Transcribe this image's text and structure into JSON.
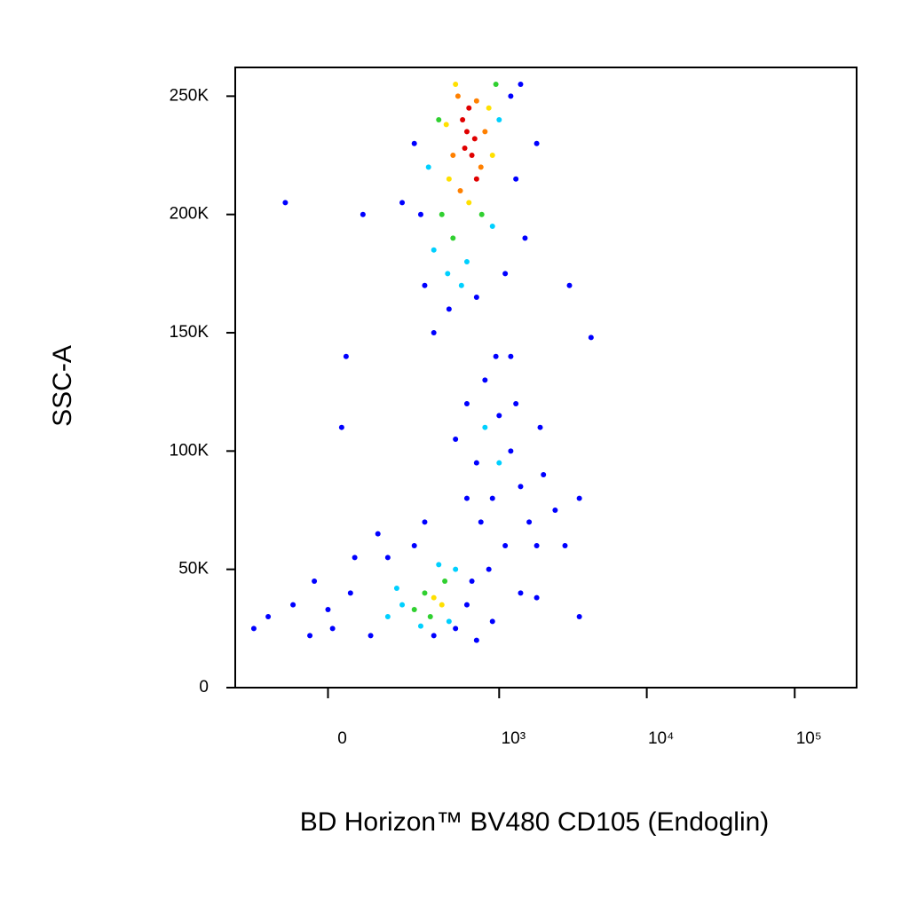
{
  "chart_data": {
    "type": "scatter",
    "x_label": "BD Horizon™ BV480 CD105 (Endoglin)",
    "y_label": "SSC-A",
    "xscale": "arcsinh",
    "xlim": [
      -280,
      262144
    ],
    "ylim": [
      0,
      262144
    ],
    "xticks": [
      0,
      {
        "value": 1000,
        "label": "10³"
      },
      {
        "value": 10000,
        "label": "10⁴"
      },
      {
        "value": 100000,
        "label": "10⁵"
      }
    ],
    "yticks": [
      0,
      {
        "value": 50000,
        "label": "50K"
      },
      {
        "value": 100000,
        "label": "100K"
      },
      {
        "value": 150000,
        "label": "150K"
      },
      {
        "value": 200000,
        "label": "200K"
      },
      {
        "value": 250000,
        "label": "250K"
      }
    ],
    "series": [
      {
        "color": "#0000ff",
        "x": [
          250,
          280,
          1200,
          1300,
          1500,
          300,
          700,
          450,
          1100,
          200,
          1800,
          1400,
          350,
          80,
          -100,
          40,
          30,
          3000,
          4200,
          600,
          800,
          1000,
          1200,
          700,
          900,
          1400,
          1600,
          500,
          1100,
          1300,
          750,
          2000,
          600,
          1800,
          950,
          1200,
          1900,
          2400,
          3500,
          2800,
          850,
          -150,
          -80,
          -30,
          10,
          50,
          100,
          60,
          150,
          250,
          350,
          500,
          600,
          650,
          300,
          700,
          900,
          -40,
          -200,
          1400,
          1800,
          3500,
          120,
          0
        ],
        "y": [
          230000,
          200000,
          250000,
          215000,
          190000,
          170000,
          165000,
          160000,
          175000,
          205000,
          230000,
          255000,
          150000,
          200000,
          205000,
          140000,
          110000,
          170000,
          148000,
          120000,
          130000,
          115000,
          100000,
          95000,
          80000,
          85000,
          70000,
          105000,
          60000,
          120000,
          70000,
          90000,
          80000,
          60000,
          140000,
          140000,
          110000,
          75000,
          80000,
          60000,
          50000,
          30000,
          35000,
          45000,
          25000,
          40000,
          22000,
          55000,
          55000,
          60000,
          22000,
          25000,
          35000,
          45000,
          70000,
          20000,
          28000,
          22000,
          25000,
          40000,
          38000,
          30000,
          65000,
          33000
        ]
      },
      {
        "color": "#00d0ff",
        "x": [
          350,
          600,
          900,
          320,
          1000,
          440,
          550,
          200,
          150,
          500,
          280,
          450,
          380,
          180,
          800,
          1000
        ],
        "y": [
          185000,
          180000,
          195000,
          220000,
          240000,
          175000,
          170000,
          35000,
          30000,
          50000,
          26000,
          28000,
          52000,
          42000,
          110000,
          95000
        ]
      },
      {
        "color": "#30d030",
        "x": [
          400,
          760,
          380,
          950,
          480,
          300,
          250,
          420,
          330
        ],
        "y": [
          200000,
          200000,
          240000,
          255000,
          190000,
          40000,
          33000,
          45000,
          30000
        ]
      },
      {
        "color": "#ffe000",
        "x": [
          500,
          850,
          450,
          620,
          900,
          430,
          400,
          350
        ],
        "y": [
          255000,
          245000,
          215000,
          205000,
          225000,
          238000,
          35000,
          38000
        ]
      },
      {
        "color": "#ff8000",
        "x": [
          520,
          750,
          540,
          700,
          480,
          800
        ],
        "y": [
          250000,
          220000,
          210000,
          248000,
          225000,
          235000
        ]
      },
      {
        "color": "#e00000",
        "x": [
          600,
          650,
          560,
          700,
          620,
          580,
          680
        ],
        "y": [
          235000,
          225000,
          240000,
          215000,
          245000,
          228000,
          232000
        ]
      }
    ]
  }
}
